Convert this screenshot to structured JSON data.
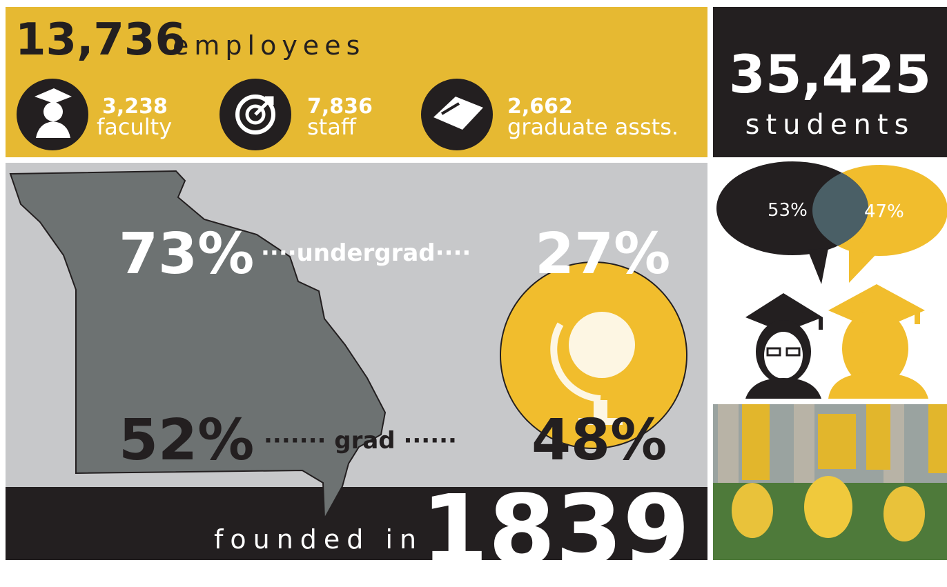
{
  "employees": {
    "total": "13,736",
    "label": "employees",
    "groups": [
      {
        "number": "3,238",
        "label": "faculty"
      },
      {
        "number": "7,836",
        "label": "staff"
      },
      {
        "number": "2,662",
        "label": "graduate assts."
      }
    ]
  },
  "students": {
    "total": "35,425",
    "label": "students",
    "split": [
      "53%",
      "47%"
    ]
  },
  "residency": {
    "undergrad": {
      "label": "undergrad",
      "in_state": "73%",
      "out_of_state": "27%"
    },
    "grad": {
      "label": "grad",
      "in_state": "52%",
      "out_of_state": "48%"
    }
  },
  "founded": {
    "label": "founded in",
    "year": "1839"
  }
}
